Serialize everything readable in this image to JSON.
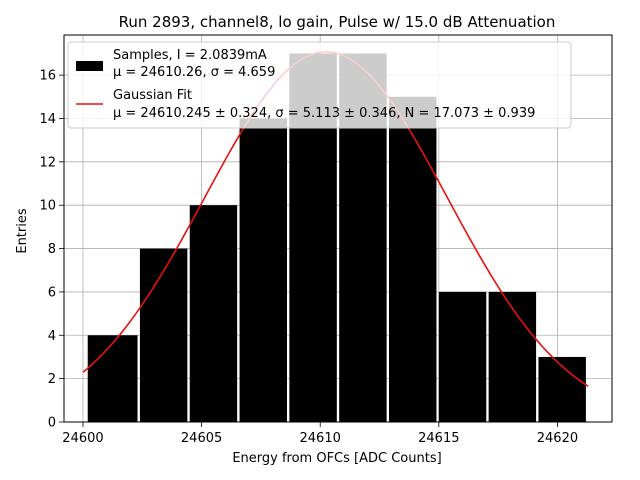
{
  "chart_data": {
    "type": "bar",
    "title": "Run 2893, channel8, lo gain, Pulse w/ 15.0 dB Attenuation",
    "xlabel": "Energy from OFCs [ADC Counts]",
    "ylabel": "Entries",
    "xlim": [
      24599.2,
      24622.3
    ],
    "ylim": [
      0,
      17.85
    ],
    "xticks": [
      24600,
      24605,
      24610,
      24615,
      24620
    ],
    "yticks": [
      0,
      2,
      4,
      6,
      8,
      10,
      12,
      14,
      16
    ],
    "grid": true,
    "legend_position": "top-left",
    "bins": [
      {
        "left": 24600.2,
        "right": 24602.3,
        "count": 4
      },
      {
        "left": 24602.4,
        "right": 24604.4,
        "count": 8
      },
      {
        "left": 24604.5,
        "right": 24606.5,
        "count": 10
      },
      {
        "left": 24606.6,
        "right": 24608.6,
        "count": 14
      },
      {
        "left": 24608.7,
        "right": 24610.7,
        "count": 17
      },
      {
        "left": 24610.8,
        "right": 24612.8,
        "count": 17
      },
      {
        "left": 24612.9,
        "right": 24614.9,
        "count": 15
      },
      {
        "left": 24615.0,
        "right": 24617.0,
        "count": 6
      },
      {
        "left": 24617.1,
        "right": 24619.1,
        "count": 6
      },
      {
        "left": 24619.2,
        "right": 24621.2,
        "count": 3
      }
    ],
    "fit": {
      "mu": 24610.245,
      "sigma": 5.113,
      "N": 17.073,
      "x_range": [
        24600.0,
        24621.3
      ]
    },
    "series": [
      {
        "name": "Samples, I = 2.0839mA",
        "stats": "μ = 24610.26, σ = 4.659",
        "color": "#000000"
      },
      {
        "name": "Gaussian Fit",
        "stats": "μ = 24610.245 ± 0.324, σ = 5.113 ± 0.346, N = 17.073 ± 0.939",
        "color": "#e8110f"
      }
    ]
  }
}
